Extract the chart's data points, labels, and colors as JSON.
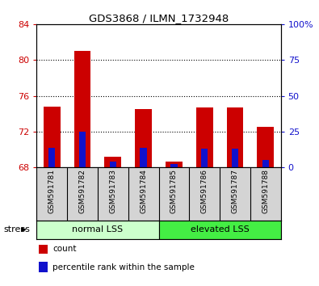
{
  "title": "GDS3868 / ILMN_1732948",
  "samples": [
    "GSM591781",
    "GSM591782",
    "GSM591783",
    "GSM591784",
    "GSM591785",
    "GSM591786",
    "GSM591787",
    "GSM591788"
  ],
  "count_values": [
    74.8,
    81.0,
    69.2,
    74.5,
    68.6,
    74.7,
    74.7,
    72.5
  ],
  "percentile_values": [
    70.2,
    72.0,
    68.6,
    70.2,
    68.4,
    70.1,
    70.1,
    68.8
  ],
  "ylim_left": [
    68,
    84
  ],
  "yticks_left": [
    68,
    72,
    76,
    80,
    84
  ],
  "yticks_right": [
    0,
    25,
    50,
    75,
    100
  ],
  "ylim_right": [
    0,
    100
  ],
  "bar_bottom": 68.0,
  "bar_width": 0.55,
  "blue_bar_width": 0.22,
  "count_color": "#cc0000",
  "percentile_color": "#1111cc",
  "group1_color": "#ccffcc",
  "group2_color": "#44ee44",
  "groups": [
    {
      "label": "normal LSS",
      "start": 0,
      "end": 3,
      "color": "#ccffcc"
    },
    {
      "label": "elevated LSS",
      "start": 4,
      "end": 7,
      "color": "#44ee44"
    }
  ],
  "stress_label": "stress",
  "legend_items": [
    {
      "label": "count",
      "color": "#cc0000"
    },
    {
      "label": "percentile rank within the sample",
      "color": "#1111cc"
    }
  ],
  "left_tick_color": "#cc0000",
  "right_tick_color": "#1111cc",
  "label_bg_color": "#d4d4d4"
}
